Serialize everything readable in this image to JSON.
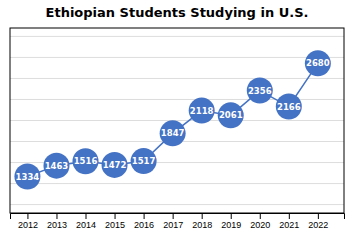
{
  "chart_data": {
    "type": "line",
    "title": "Ethiopian Students Studying in U.S.",
    "x": [
      2012,
      2013,
      2014,
      2015,
      2016,
      2017,
      2018,
      2019,
      2020,
      2021,
      2022
    ],
    "values": [
      1334,
      1463,
      1516,
      1472,
      1517,
      1847,
      2118,
      2061,
      2356,
      2166,
      2680
    ],
    "color": "#4472C4",
    "marker": "circle",
    "xlim": [
      2011.4,
      2022.9
    ],
    "xticks": [
      2012,
      2013,
      2014,
      2015,
      2016,
      2017,
      2018,
      2019,
      2020,
      2021,
      2022
    ],
    "ylim": [
      900,
      3100
    ],
    "yticks": [
      1000,
      1250,
      1500,
      1750,
      2000,
      2250,
      2500,
      2750,
      3000
    ],
    "grid": true,
    "data_labels": true,
    "tick_labels": "x"
  }
}
